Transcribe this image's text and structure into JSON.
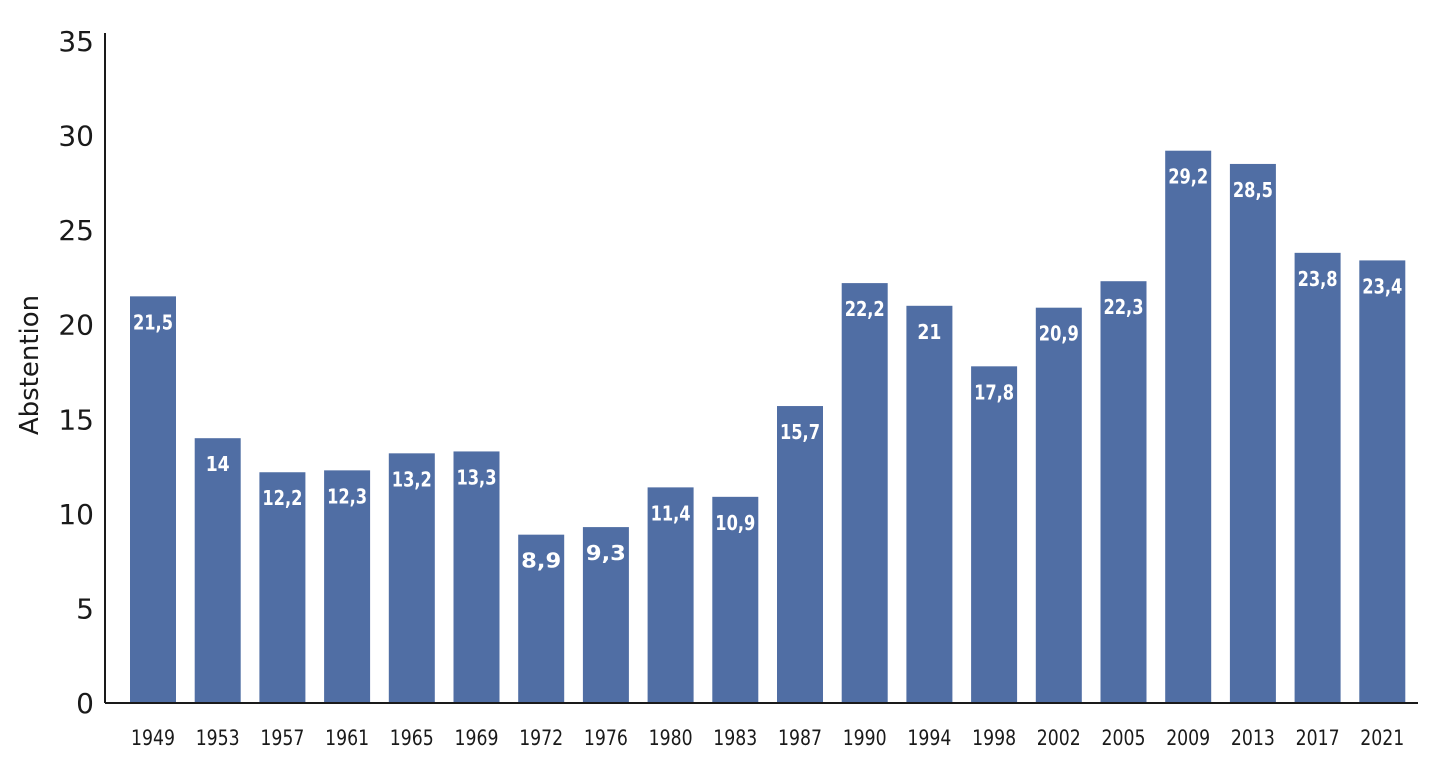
{
  "chart_data": {
    "type": "bar",
    "categories": [
      "1949",
      "1953",
      "1957",
      "1961",
      "1965",
      "1969",
      "1972",
      "1976",
      "1980",
      "1983",
      "1987",
      "1990",
      "1994",
      "1998",
      "2002",
      "2005",
      "2009",
      "2013",
      "2017",
      "2021"
    ],
    "values": [
      21.5,
      14,
      12.2,
      12.3,
      13.2,
      13.3,
      8.9,
      9.3,
      11.4,
      10.9,
      15.7,
      22.2,
      21,
      17.8,
      20.9,
      22.3,
      29.2,
      28.5,
      23.8,
      23.4
    ],
    "data_labels": [
      "21,5",
      "14",
      "12,2",
      "12,3",
      "13,2",
      "13,3",
      "8,9",
      "9,3",
      "11,4",
      "10,9",
      "15,7",
      "22,2",
      "21",
      "17,8",
      "20,9",
      "22,3",
      "29,2",
      "28,5",
      "23,8",
      "23,4"
    ],
    "ylabel": "Abstention",
    "xlabel": "",
    "ylim": [
      0,
      35
    ],
    "yticks": [
      "0",
      "5",
      "10",
      "15",
      "20",
      "25",
      "30",
      "35"
    ],
    "bar_color": "#506ea4",
    "label_color": "#ffffff",
    "grid": false,
    "legend": "none"
  }
}
